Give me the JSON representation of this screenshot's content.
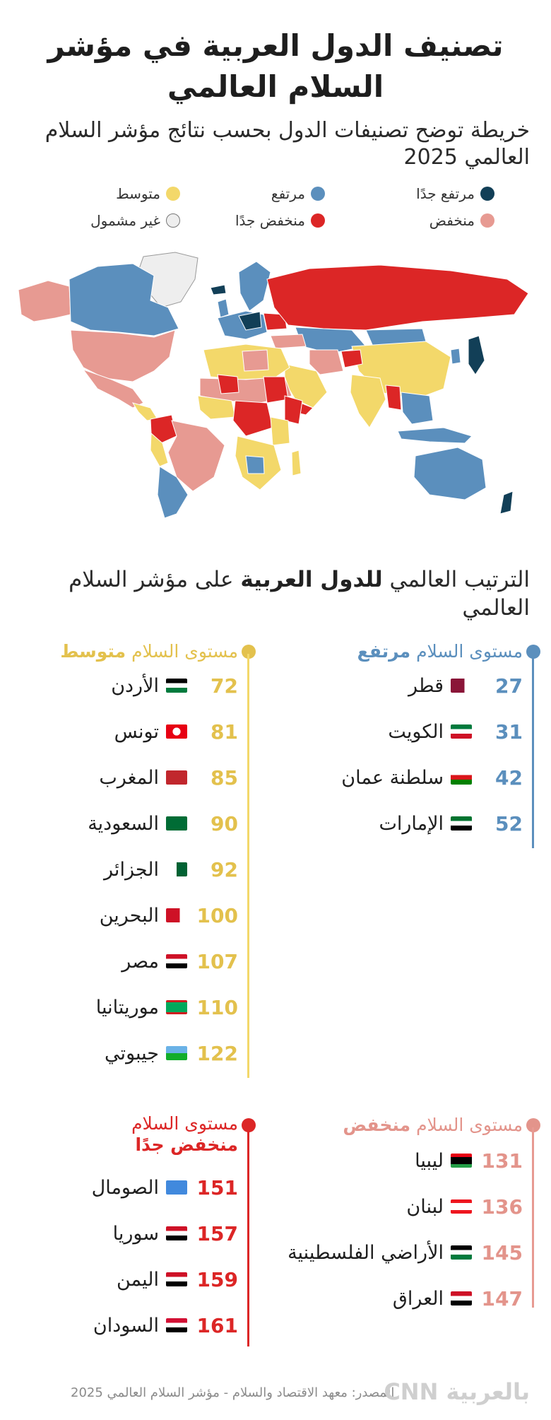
{
  "title": "تصنيف الدول العربية في مؤشر السلام العالمي",
  "subtitle": "خريطة توضح تصنيفات الدول بحسب نتائج مؤشر السلام العالمي 2025",
  "colors": {
    "very_high": "#123f57",
    "high": "#5b8fbd",
    "medium": "#f3d86a",
    "low": "#e79a92",
    "very_low": "#dc2626",
    "not_included": "#eeeeee"
  },
  "legend": [
    {
      "label": "مرتفع جدًا",
      "color": "#123f57"
    },
    {
      "label": "مرتفع",
      "color": "#5b8fbd"
    },
    {
      "label": "متوسط",
      "color": "#f3d86a"
    },
    {
      "label": "منخفض",
      "color": "#e79a92"
    },
    {
      "label": "منخفض جدًا",
      "color": "#dc2626"
    },
    {
      "label": "غير مشمول",
      "color": "#eeeeee"
    }
  ],
  "ranking": {
    "heading_pre": "الترتيب العالمي ",
    "heading_bold": "للدول العربية",
    "heading_post": " على مؤشر السلام العالمي"
  },
  "groups": {
    "high": {
      "label_prefix": "مستوى السلام ",
      "label_level": "مرتفع",
      "color": "#5b8fbd",
      "countries": [
        {
          "rank": "27",
          "name": "قطر",
          "flag": "qatar"
        },
        {
          "rank": "31",
          "name": "الكويت",
          "flag": "kuwait"
        },
        {
          "rank": "42",
          "name": "سلطنة عمان",
          "flag": "oman"
        },
        {
          "rank": "52",
          "name": "الإمارات",
          "flag": "uae"
        }
      ]
    },
    "medium": {
      "label_prefix": "مستوى السلام ",
      "label_level": "متوسط",
      "color": "#e3c14d",
      "countries": [
        {
          "rank": "72",
          "name": "الأردن",
          "flag": "jordan"
        },
        {
          "rank": "81",
          "name": "تونس",
          "flag": "tunisia"
        },
        {
          "rank": "85",
          "name": "المغرب",
          "flag": "morocco"
        },
        {
          "rank": "90",
          "name": "السعودية",
          "flag": "saudi"
        },
        {
          "rank": "92",
          "name": "الجزائر",
          "flag": "algeria"
        },
        {
          "rank": "100",
          "name": "البحرين",
          "flag": "bahrain"
        },
        {
          "rank": "107",
          "name": "مصر",
          "flag": "egypt"
        },
        {
          "rank": "110",
          "name": "موريتانيا",
          "flag": "mauritania"
        },
        {
          "rank": "122",
          "name": "جيبوتي",
          "flag": "djibouti"
        }
      ]
    },
    "low": {
      "label_prefix": "مستوى السلام ",
      "label_level": "منخفض",
      "color": "#e3948b",
      "countries": [
        {
          "rank": "131",
          "name": "ليبيا",
          "flag": "libya"
        },
        {
          "rank": "136",
          "name": "لبنان",
          "flag": "lebanon"
        },
        {
          "rank": "145",
          "name": "الأراضي الفلسطينية",
          "flag": "palestine"
        },
        {
          "rank": "147",
          "name": "العراق",
          "flag": "iraq"
        }
      ]
    },
    "very_low": {
      "label_prefix": "مستوى السلام",
      "label_level": "منخفض جدًا",
      "color": "#dc2626",
      "countries": [
        {
          "rank": "151",
          "name": "الصومال",
          "flag": "somalia"
        },
        {
          "rank": "157",
          "name": "سوريا",
          "flag": "syria"
        },
        {
          "rank": "159",
          "name": "اليمن",
          "flag": "yemen"
        },
        {
          "rank": "161",
          "name": "السودان",
          "flag": "sudan"
        }
      ]
    }
  },
  "footer": {
    "source": "المصدر: معهد الاقتصاد والسلام - مؤشر السلام العالمي 2025",
    "logo": "بالعربية CNN"
  }
}
